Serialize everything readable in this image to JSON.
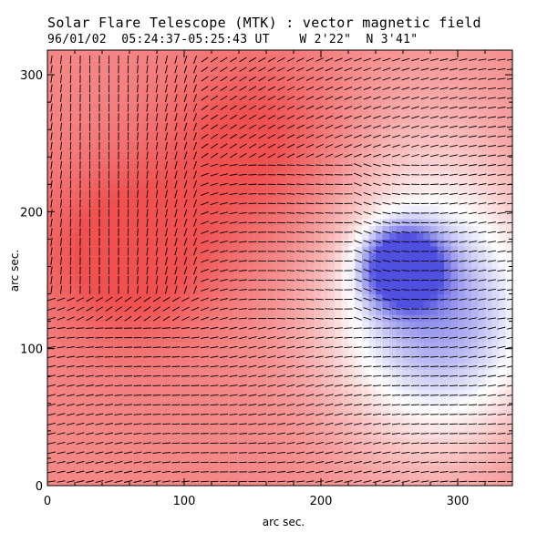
{
  "chart_data": {
    "type": "heatmap",
    "title": "Solar Flare Telescope (MTK) : vector magnetic field",
    "subtitle_date": "96/01/02",
    "subtitle_time": "05:24:37-05:25:43 UT",
    "subtitle_position": "W 2'22\"  N 3'41\"",
    "xlabel": "arc sec.",
    "ylabel": "arc sec.",
    "xlim": [
      0,
      340
    ],
    "ylim": [
      0,
      318
    ],
    "xticks": [
      0,
      100,
      200,
      300
    ],
    "yticks": [
      0,
      100,
      200,
      300
    ],
    "colormap": {
      "positive": "#f05050",
      "neutral": "#ffffff",
      "negative": "#5050e0"
    },
    "field_regions": [
      {
        "name": "positive-core",
        "x": 60,
        "y": 170,
        "strength": 1.0
      },
      {
        "name": "positive-upper",
        "x": 150,
        "y": 250,
        "strength": 0.8
      },
      {
        "name": "negative-spot",
        "x": 260,
        "y": 160,
        "strength": -1.0
      },
      {
        "name": "neutral-arc",
        "x": 290,
        "y": 120,
        "strength": 0.0
      }
    ],
    "vector_spacing_arcsec": 7
  }
}
